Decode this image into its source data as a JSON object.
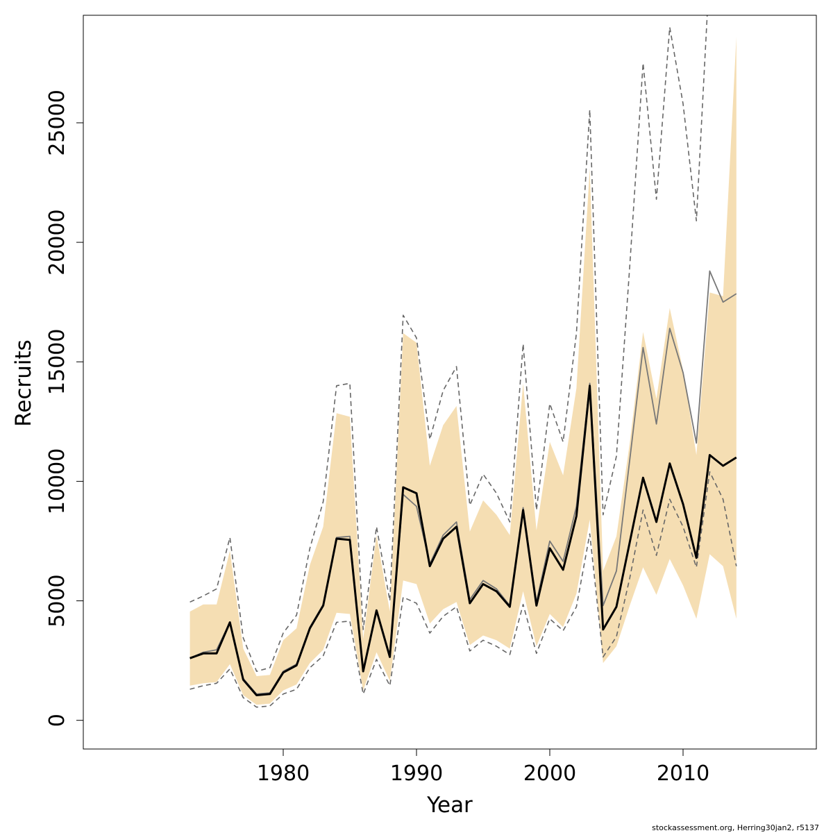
{
  "chart_data": {
    "type": "line",
    "title": "",
    "xlabel": "Year",
    "ylabel": "Recruits",
    "xlim": [
      1965,
      2020
    ],
    "ylim": [
      -1200,
      29500
    ],
    "x_ticks": [
      1980,
      1990,
      2000,
      2010
    ],
    "y_ticks": [
      0,
      5000,
      10000,
      15000,
      20000,
      25000
    ],
    "grid": false,
    "legend": "none",
    "colors": {
      "band": "#f5deb3",
      "main_line": "#000000",
      "second_line": "#777777",
      "dashed_lines": "#666666",
      "frame": "#000000"
    },
    "x": [
      1973,
      1974,
      1975,
      1976,
      1977,
      1978,
      1979,
      1980,
      1981,
      1982,
      1983,
      1984,
      1985,
      1986,
      1987,
      1988,
      1989,
      1990,
      1991,
      1992,
      1993,
      1994,
      1995,
      1996,
      1997,
      1998,
      1999,
      2000,
      2001,
      2002,
      2003,
      2004,
      2005,
      2006,
      2007,
      2008,
      2009,
      2010,
      2011,
      2012,
      2013,
      2014
    ],
    "series": [
      {
        "role": "band_upper",
        "values": [
          4550,
          4850,
          4850,
          7100,
          3000,
          1850,
          1900,
          3350,
          3850,
          6500,
          8100,
          12850,
          12700,
          3400,
          7750,
          4550,
          16200,
          15800,
          10650,
          12350,
          13150,
          7900,
          9200,
          8600,
          7750,
          14100,
          7950,
          11650,
          10250,
          13900,
          23100,
          6250,
          7700,
          11600,
          16250,
          13450,
          17250,
          14650,
          11100,
          17900,
          17750,
          28600
        ]
      },
      {
        "role": "band_lower",
        "values": [
          1450,
          1550,
          1600,
          2350,
          1050,
          650,
          700,
          1250,
          1500,
          2400,
          2950,
          4500,
          4450,
          1250,
          2850,
          1650,
          5850,
          5700,
          4050,
          4650,
          4950,
          3150,
          3550,
          3350,
          3000,
          5400,
          3100,
          4450,
          3900,
          5300,
          8400,
          2400,
          3100,
          4800,
          6400,
          5250,
          6750,
          5650,
          4250,
          6950,
          6450,
          4250
        ]
      },
      {
        "name": "",
        "role": "dashed_upper",
        "values": [
          4950,
          5200,
          5500,
          7650,
          3450,
          2050,
          2200,
          3650,
          4400,
          7200,
          9150,
          14000,
          14100,
          3800,
          8100,
          5000,
          16950,
          16000,
          11750,
          13800,
          14800,
          9000,
          10300,
          9500,
          8300,
          15750,
          8800,
          13250,
          11650,
          16200,
          25550,
          8600,
          11050,
          19000,
          27500,
          21800,
          29000,
          25800,
          20900,
          31500,
          31500,
          31500
        ]
      },
      {
        "name": "",
        "role": "dashed_lower",
        "values": [
          1300,
          1450,
          1550,
          2150,
          950,
          550,
          600,
          1100,
          1300,
          2200,
          2700,
          4100,
          4150,
          1100,
          2550,
          1450,
          5150,
          4900,
          3650,
          4350,
          4750,
          2900,
          3350,
          3100,
          2750,
          4850,
          2800,
          4250,
          3750,
          4750,
          7800,
          2650,
          3500,
          5950,
          8800,
          6900,
          9250,
          8100,
          6400,
          10400,
          9250,
          6450
        ]
      },
      {
        "name": "",
        "role": "main_line",
        "values": [
          2600,
          2800,
          2800,
          4100,
          1700,
          1050,
          1100,
          2000,
          2300,
          3850,
          4800,
          7600,
          7550,
          2050,
          4600,
          2650,
          9750,
          9500,
          6450,
          7600,
          8100,
          4900,
          5700,
          5400,
          4750,
          8800,
          4800,
          7200,
          6300,
          8550,
          14000,
          3800,
          4750,
          7450,
          10150,
          8300,
          10750,
          9050,
          6800,
          11100,
          10650,
          11000
        ]
      },
      {
        "name": "",
        "role": "second_line",
        "values": [
          2600,
          2850,
          2950,
          4100,
          1750,
          1100,
          1150,
          2050,
          2350,
          3900,
          4850,
          7650,
          7700,
          2100,
          4600,
          2700,
          9450,
          8950,
          6550,
          7750,
          8300,
          5050,
          5850,
          5500,
          4800,
          8900,
          4950,
          7500,
          6650,
          8950,
          14100,
          4800,
          6250,
          10900,
          15600,
          12400,
          16400,
          14550,
          11600,
          18800,
          17500,
          17850
        ]
      }
    ]
  },
  "footer": {
    "text": "stockassessment.org, Herring30jan2, r5137"
  }
}
